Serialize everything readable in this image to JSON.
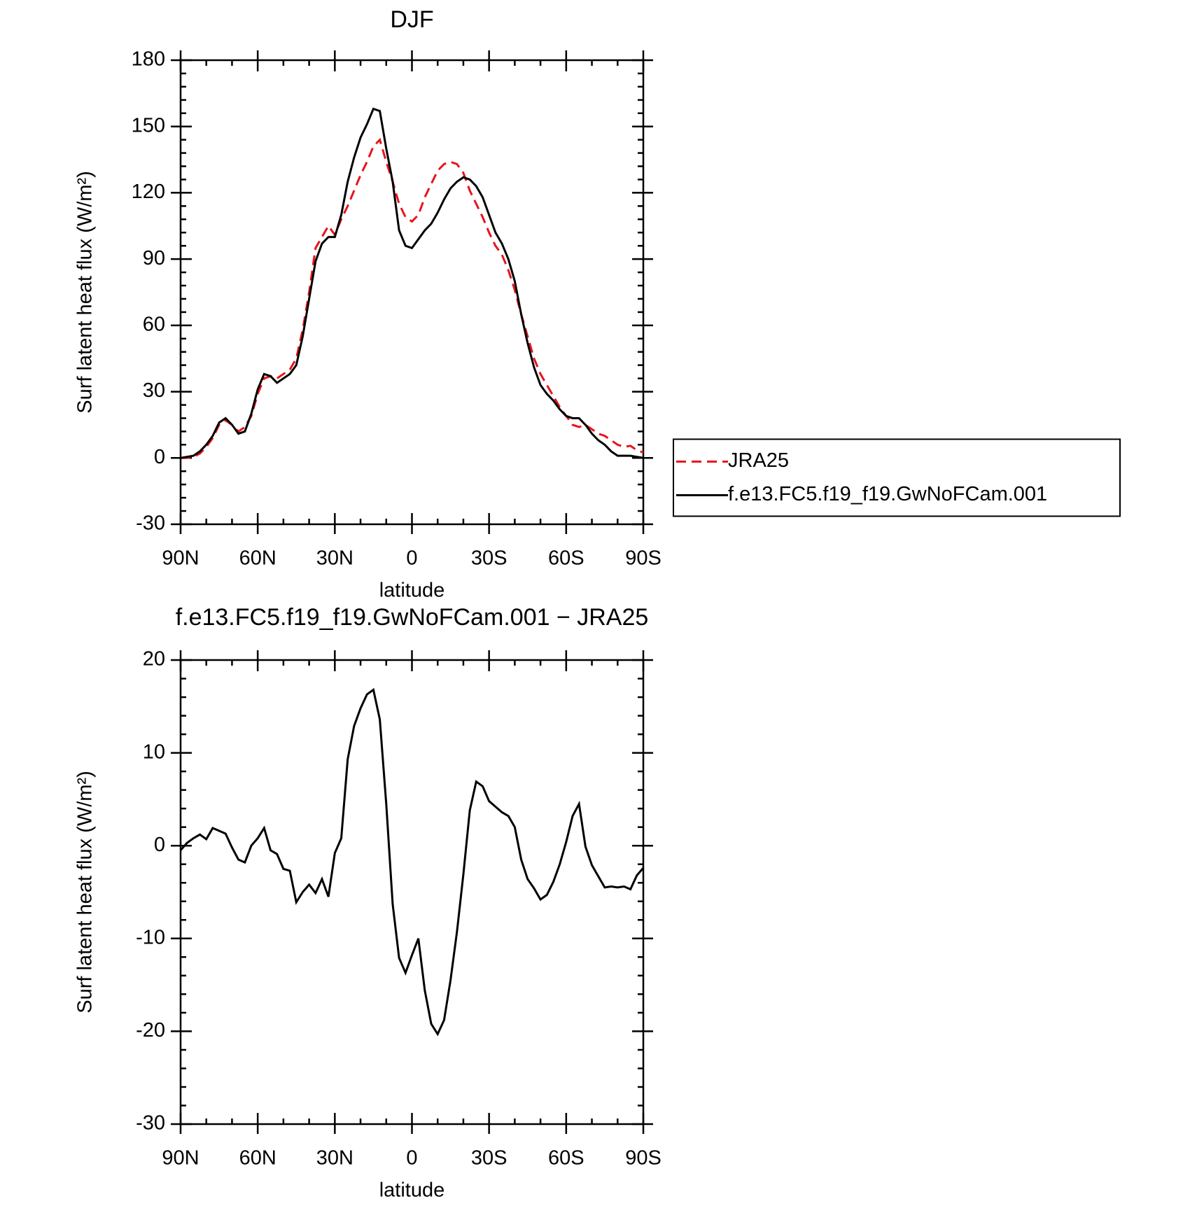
{
  "chart_data": [
    {
      "type": "line",
      "title": "DJF",
      "xlabel": "latitude",
      "ylabel": "Surf latent heat flux (W/m²)",
      "x": [
        90,
        87.5,
        85,
        82.5,
        80,
        77.5,
        75,
        72.5,
        70,
        67.5,
        65,
        62.5,
        60,
        57.5,
        55,
        52.5,
        50,
        47.5,
        45,
        42.5,
        40,
        37.5,
        35,
        32.5,
        30,
        27.5,
        25,
        22.5,
        20,
        17.5,
        15,
        12.5,
        10,
        7.5,
        5,
        2.5,
        0,
        -2.5,
        -5,
        -7.5,
        -10,
        -12.5,
        -15,
        -17.5,
        -20,
        -22.5,
        -25,
        -27.5,
        -30,
        -32.5,
        -35,
        -37.5,
        -40,
        -42.5,
        -45,
        -47.5,
        -50,
        -52.5,
        -55,
        -57.5,
        -60,
        -62.5,
        -65,
        -67.5,
        -70,
        -72.5,
        -75,
        -77.5,
        -80,
        -82.5,
        -85,
        -87.5,
        -90
      ],
      "series": [
        {
          "name": "JRA25",
          "color": "#e8141c",
          "style": "dashed",
          "values": [
            0,
            0,
            0.5,
            2,
            5,
            9,
            15,
            17,
            15,
            12,
            14,
            19,
            29,
            36,
            37,
            36,
            38,
            40,
            45,
            58,
            75,
            95,
            100,
            105,
            101,
            108,
            114,
            121,
            128,
            134,
            141,
            144,
            134,
            125,
            115,
            109,
            107,
            110,
            118,
            124,
            130,
            133,
            134,
            133,
            129,
            121,
            115,
            109,
            102,
            96,
            92,
            85,
            76,
            65,
            55,
            45,
            38,
            33,
            28,
            23,
            19,
            15,
            14,
            15,
            13,
            11,
            10,
            8,
            6,
            5,
            5.5,
            3.5,
            2.5
          ]
        },
        {
          "name": "f.e13.FC5.f19_f19.GwNoFCam.001",
          "color": "#000000",
          "style": "solid",
          "values": [
            0,
            0.5,
            1,
            3,
            6,
            10,
            16,
            18,
            15,
            11,
            12,
            20,
            31,
            38,
            37,
            34,
            36,
            38,
            42,
            55,
            72,
            89,
            97,
            100,
            100,
            110,
            125,
            136,
            145,
            151,
            158,
            157,
            140,
            125,
            103,
            96,
            95,
            99,
            103,
            106,
            111,
            117,
            122,
            125,
            127,
            126,
            123,
            118,
            110,
            102,
            97,
            90,
            80,
            65,
            52,
            41,
            33,
            29,
            26,
            22,
            19,
            18,
            18,
            15,
            11,
            8,
            6,
            3,
            1,
            1,
            1,
            0.5,
            0
          ]
        }
      ],
      "xlim": [
        90,
        -90
      ],
      "xticks": [
        {
          "value": 90,
          "label": "90N"
        },
        {
          "value": 60,
          "label": "60N"
        },
        {
          "value": 30,
          "label": "30N"
        },
        0,
        {
          "value": -30,
          "label": "30S"
        },
        {
          "value": -60,
          "label": "60S"
        },
        {
          "value": -90,
          "label": "90S"
        }
      ],
      "minor_xticks": [
        80,
        70,
        50,
        40,
        20,
        10,
        -10,
        -20,
        -40,
        -50,
        -70,
        -80
      ],
      "ylim": [
        -30,
        180
      ],
      "yticks": [
        -30,
        0,
        30,
        60,
        90,
        120,
        150,
        180
      ],
      "minor_yticks": [
        -24,
        -18,
        -12,
        -6,
        6,
        12,
        18,
        24,
        36,
        42,
        48,
        54,
        66,
        72,
        78,
        84,
        96,
        102,
        108,
        114,
        126,
        132,
        138,
        144,
        156,
        162,
        168,
        174
      ],
      "legend": "right"
    },
    {
      "type": "line",
      "title": "f.e13.FC5.f19_f19.GwNoFCam.001 − JRA25",
      "xlabel": "latitude",
      "ylabel": "Surf latent heat flux (W/m²)",
      "x": [
        90,
        87.5,
        85,
        82.5,
        80,
        77.5,
        75,
        72.5,
        70,
        67.5,
        65,
        62.5,
        60,
        57.5,
        55,
        52.5,
        50,
        47.5,
        45,
        42.5,
        40,
        37.5,
        35,
        32.5,
        30,
        27.5,
        25,
        22.5,
        20,
        17.5,
        15,
        12.5,
        10,
        7.5,
        5,
        2.5,
        0,
        -2.5,
        -5,
        -7.5,
        -10,
        -12.5,
        -15,
        -17.5,
        -20,
        -22.5,
        -25,
        -27.5,
        -30,
        -32.5,
        -35,
        -37.5,
        -40,
        -42.5,
        -45,
        -47.5,
        -50,
        -52.5,
        -55,
        -57.5,
        -60,
        -62.5,
        -65,
        -67.5,
        -70,
        -72.5,
        -75,
        -77.5,
        -80,
        -82.5,
        -85,
        -87.5,
        -90
      ],
      "series": [
        {
          "color": "#000000",
          "style": "solid",
          "values": [
            -0.5,
            0.3,
            0.8,
            1.2,
            0.7,
            1.9,
            1.6,
            1.3,
            -0.2,
            -1.5,
            -1.8,
            0,
            0.8,
            1.9,
            -0.5,
            -0.9,
            -2.5,
            -2.7,
            -6.1,
            -5.0,
            -4.2,
            -5.1,
            -3.6,
            -5.5,
            -0.8,
            0.8,
            9.3,
            12.9,
            14.8,
            16.3,
            16.8,
            13.6,
            4.5,
            -6.3,
            -12.1,
            -13.7,
            -11.8,
            -10.0,
            -15.6,
            -19.2,
            -20.3,
            -18.8,
            -14.5,
            -9.3,
            -3.1,
            3.8,
            6.9,
            6.4,
            4.8,
            4.2,
            3.6,
            3.2,
            2.0,
            -1.5,
            -3.6,
            -4.6,
            -5.8,
            -5.3,
            -3.9,
            -2.0,
            0.4,
            3.2,
            4.5,
            -0.1,
            -2.1,
            -3.3,
            -4.5,
            -4.4,
            -4.5,
            -4.4,
            -4.7,
            -3.2,
            -2.4
          ]
        }
      ],
      "xlim": [
        90,
        -90
      ],
      "xticks": [
        {
          "value": 90,
          "label": "90N"
        },
        {
          "value": 60,
          "label": "60N"
        },
        {
          "value": 30,
          "label": "30N"
        },
        0,
        {
          "value": -30,
          "label": "30S"
        },
        {
          "value": -60,
          "label": "60S"
        },
        {
          "value": -90,
          "label": "90S"
        }
      ],
      "minor_xticks": [
        80,
        70,
        50,
        40,
        20,
        10,
        -10,
        -20,
        -40,
        -50,
        -70,
        -80
      ],
      "ylim": [
        -30,
        20
      ],
      "yticks": [
        -30,
        -20,
        -10,
        0,
        10,
        20
      ],
      "minor_yticks": [
        -28,
        -26,
        -24,
        -22,
        -18,
        -16,
        -14,
        -12,
        -8,
        -6,
        -4,
        -2,
        2,
        4,
        6,
        8,
        12,
        14,
        16,
        18
      ]
    }
  ]
}
